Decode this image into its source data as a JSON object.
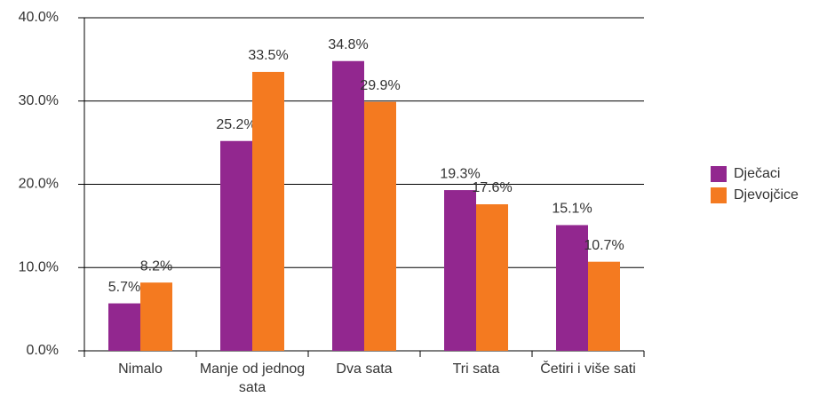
{
  "chart_data": {
    "type": "bar",
    "categories": [
      "Nimalo",
      "Manje od jednog sata",
      "Dva sata",
      "Tri sata",
      "Četiri i više sati"
    ],
    "series": [
      {
        "name": "Dječaci",
        "color": "#92278f",
        "values": [
          5.7,
          25.2,
          34.8,
          19.3,
          15.1
        ],
        "value_labels": [
          "5.7%",
          "25.2%",
          "34.8%",
          "19.3%",
          "15.1%"
        ]
      },
      {
        "name": "Djevojčice",
        "color": "#f47a20",
        "values": [
          8.2,
          33.5,
          29.9,
          17.6,
          10.7
        ],
        "value_labels": [
          "8.2%",
          "33.5%",
          "29.9%",
          "17.6%",
          "10.7%"
        ]
      }
    ],
    "ylim": [
      0,
      40
    ],
    "yticks": [
      {
        "value": 0,
        "label": "0.0%"
      },
      {
        "value": 10,
        "label": "10.0%"
      },
      {
        "value": 20,
        "label": "20.0%"
      },
      {
        "value": 30,
        "label": "30.0%"
      },
      {
        "value": 40,
        "label": "40.0%"
      }
    ],
    "grid": true,
    "legend": "right"
  }
}
